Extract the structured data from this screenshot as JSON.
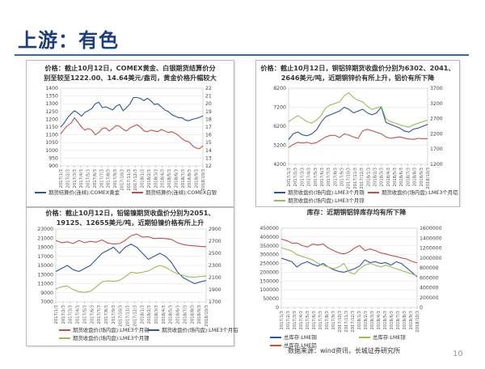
{
  "slide": {
    "title": "上游：有色",
    "source": "数据来源：wind资讯，长城证券研究所",
    "page_number": "10"
  },
  "chart_data": [
    {
      "id": "gold_silver",
      "type": "line",
      "caption_line1": "价格：截止10月12日，COMEX黄金、白银期货结算价分",
      "caption_line2": "别至较至1222.00、14.64美元/盎司，黄金价格升幅较大",
      "x_ticks": [
        "2017/1/3",
        "2017/2/3",
        "2017/3/3",
        "2017/4/3",
        "2017/5/3",
        "2017/6/3",
        "2017/7/3",
        "2017/8/3",
        "2017/9/3",
        "2017/10/3",
        "2017/11/3",
        "2017/12/3",
        "2018/1/3",
        "2018/2/3",
        "2018/3/3",
        "2018/4/3",
        "2018/5/3",
        "2018/6/3",
        "2018/7/3",
        "2018/8/3",
        "2018/9/3",
        "2018/10/3"
      ],
      "y_left": {
        "ticks": [
          "900",
          "950",
          "1000",
          "1050",
          "1100",
          "1150",
          "1200",
          "1250",
          "1300",
          "1350",
          "1400"
        ],
        "lim": [
          900,
          1400
        ]
      },
      "y_right": {
        "ticks": [
          "12",
          "13",
          "14",
          "15",
          "16",
          "17",
          "18",
          "19",
          "20",
          "21",
          "22"
        ],
        "lim": [
          12,
          22
        ]
      },
      "grid": true,
      "legend_position": "bottom",
      "series": [
        {
          "name": "期货结算价(连续):COMEX黄金",
          "axis": "left",
          "color": "#2f5597",
          "values": [
            1150,
            1175,
            1210,
            1235,
            1255,
            1240,
            1220,
            1245,
            1255,
            1270,
            1300,
            1310,
            1275,
            1280,
            1270,
            1260,
            1285,
            1295,
            1255,
            1275,
            1300,
            1340,
            1340,
            1335,
            1320,
            1335,
            1320,
            1295,
            1300,
            1280,
            1260,
            1250,
            1230,
            1220,
            1210,
            1210,
            1195,
            1190,
            1200,
            1205,
            1212,
            1222
          ]
        },
        {
          "name": "期货结算价(连续):COMEX白银",
          "axis": "right",
          "color": "#c0504d",
          "values": [
            16.1,
            16.7,
            17.2,
            17.5,
            18.2,
            17.6,
            17.0,
            16.6,
            16.8,
            16.6,
            16.0,
            16.3,
            16.8,
            16.9,
            16.5,
            16.8,
            17.2,
            17.1,
            16.7,
            16.5,
            16.9,
            17.1,
            17.3,
            17.0,
            16.5,
            16.4,
            16.6,
            16.5,
            16.4,
            16.7,
            16.5,
            16.3,
            16.4,
            16.2,
            15.9,
            15.5,
            15.2,
            15.1,
            14.6,
            14.3,
            14.2,
            14.6
          ]
        }
      ]
    },
    {
      "id": "copper_aluminum_zinc",
      "type": "line",
      "caption_line1": "价格：截止10月12日，铜铝锌期货收盘价分别为6302、2041、",
      "caption_line2": "2646美元/吨，近期铜锌价有所上升，铝价有所下降",
      "x_ticks": [
        "2017/1/3",
        "2017/2/3",
        "2017/3/3",
        "2017/4/3",
        "2017/5/3",
        "2017/6/3",
        "2017/7/3",
        "2017/8/3",
        "2017/9/3",
        "2017/10/3",
        "2017/11/3",
        "2017/12/3",
        "2018/1/3",
        "2018/2/3",
        "2018/3/3",
        "2018/4/3",
        "2018/5/3",
        "2018/6/3",
        "2018/7/3",
        "2018/8/3",
        "2018/9/3",
        "2018/10/3"
      ],
      "y_left": {
        "ticks": [
          "4200",
          "5200",
          "6200",
          "7200",
          "8200"
        ],
        "lim": [
          4200,
          8200
        ]
      },
      "y_right": {
        "ticks": [
          "1200",
          "1700",
          "2200",
          "2700",
          "3200",
          "3700"
        ],
        "lim": [
          1200,
          3700
        ]
      },
      "grid": true,
      "legend_position": "bottom",
      "series": [
        {
          "name": "期货收盘价(场内盘):LME3个月铜",
          "axis": "left",
          "color": "#2f5597",
          "values": [
            5500,
            5800,
            5900,
            5750,
            5700,
            5800,
            6000,
            6400,
            6700,
            6800,
            6900,
            7000,
            7200,
            7100,
            6900,
            7000,
            7100,
            6900,
            6800,
            6900,
            7200,
            6400,
            6300,
            6200,
            6100,
            5950,
            5900,
            6050,
            6100,
            6200,
            6302
          ]
        },
        {
          "name": "期货收盘价(场内盘):LME3个月铝",
          "axis": "right",
          "color": "#c0504d",
          "values": [
            1750,
            1850,
            1920,
            1900,
            1920,
            1880,
            1910,
            2000,
            2100,
            2150,
            2150,
            2080,
            2200,
            2160,
            2100,
            2050,
            2300,
            2350,
            2300,
            2250,
            2200,
            2100,
            2050,
            2080,
            2100,
            2060,
            2030,
            2020,
            2050,
            2040,
            2041
          ]
        },
        {
          "name": "期货收盘价(场内盘):LME3个月锌",
          "axis": "right",
          "color": "#9bbb59",
          "values": [
            2600,
            2700,
            2800,
            2700,
            2600,
            2550,
            2650,
            2800,
            3050,
            3150,
            3200,
            3250,
            3450,
            3550,
            3400,
            3300,
            3250,
            3100,
            3000,
            3050,
            3100,
            2700,
            2600,
            2550,
            2500,
            2450,
            2420,
            2500,
            2550,
            2600,
            2646
          ]
        }
      ]
    },
    {
      "id": "lead_tin_nickel",
      "type": "line",
      "caption_line1": "价格：截止10月12日，铅锡镍期货收盘价分别为2051、",
      "caption_line2": "19125、12655美元/吨，近期铅镍价格有所上升",
      "x_ticks": [
        "2017/1/3",
        "2017/2/3",
        "2017/3/3",
        "2017/4/3",
        "2017/5/3",
        "2017/6/3",
        "2017/7/3",
        "2017/8/3",
        "2017/9/3",
        "2017/10/3",
        "2017/11/3",
        "2017/12/3",
        "2018/1/3",
        "2018/2/3",
        "2018/3/3",
        "2018/4/3",
        "2018/5/3",
        "2018/6/3",
        "2018/7/3",
        "2018/8/3",
        "2018/9/3",
        "2018/10/3"
      ],
      "y_left": {
        "ticks": [
          "7000",
          "9000",
          "11000",
          "13000",
          "15000",
          "17000",
          "19000",
          "21000",
          "23000"
        ],
        "lim": [
          7000,
          23000
        ]
      },
      "y_right": {
        "ticks": [
          "1700",
          "1900",
          "2100",
          "2300",
          "2500",
          "2700",
          "2900"
        ],
        "lim": [
          1700,
          2900
        ]
      },
      "grid": true,
      "legend_position": "bottom",
      "series": [
        {
          "name": "期货收盘价(场内盘):LME3个月锡",
          "axis": "left",
          "color": "#c0504d",
          "values": [
            20500,
            20000,
            20200,
            19800,
            20500,
            20000,
            20300,
            20100,
            20600,
            19900,
            19700,
            19800,
            20500,
            21500,
            21900,
            21200,
            21300,
            20900,
            21000,
            20900,
            20700,
            20000,
            19600,
            19400,
            19300,
            19200,
            19125
          ]
        },
        {
          "name": "期货收盘价(场内盘):LME3个月铅",
          "axis": "right",
          "color": "#2f5597",
          "values": [
            2200,
            2250,
            2300,
            2230,
            2200,
            2250,
            2300,
            2400,
            2500,
            2550,
            2600,
            2500,
            2600,
            2650,
            2600,
            2500,
            2400,
            2450,
            2500,
            2450,
            2350,
            2200,
            2100,
            2050,
            2000,
            2030,
            2051
          ]
        },
        {
          "name": "期货收盘价(场内盘):LME3个月镍",
          "axis": "left",
          "color": "#9bbb59",
          "values": [
            9800,
            10300,
            10500,
            9700,
            9200,
            9100,
            9300,
            10300,
            11400,
            11600,
            11500,
            11700,
            12500,
            13500,
            13300,
            13500,
            13800,
            14500,
            15000,
            14600,
            13800,
            13200,
            12800,
            12500,
            12400,
            12550,
            12655
          ]
        }
      ]
    },
    {
      "id": "lme_inventory",
      "type": "line",
      "caption_line1": "库存：近期铜铝锌库存均有所下降",
      "caption_line2": "",
      "x_ticks": [
        "2017/1/3",
        "2017/2/3",
        "2017/3/3",
        "2017/4/3",
        "2017/5/3",
        "2017/6/3",
        "2017/7/3",
        "2017/8/3",
        "2017/9/3",
        "2017/10/3",
        "2017/11/3",
        "2017/12/3",
        "2018/1/3",
        "2018/2/3",
        "2018/3/3",
        "2018/4/3",
        "2018/5/3",
        "2018/6/3",
        "2018/7/3",
        "2018/8/3",
        "2018/9/3",
        "2018/10/3"
      ],
      "y_left": {
        "ticks": [
          "0",
          "50000",
          "100000",
          "150000",
          "200000",
          "250000",
          "300000",
          "350000",
          "400000",
          "450000"
        ],
        "lim": [
          0,
          450000
        ]
      },
      "y_right": {
        "ticks": [
          "0",
          "200000",
          "400000",
          "600000",
          "800000",
          "1000000",
          "1200000",
          "1400000",
          "1600000"
        ],
        "lim": [
          0,
          1600000
        ]
      },
      "grid": true,
      "legend_position": "bottom",
      "series": [
        {
          "name": "总库存:LME铜",
          "axis": "left",
          "color": "#2f5597",
          "values": [
            280000,
            270000,
            260000,
            230000,
            250000,
            260000,
            245000,
            235000,
            250000,
            230000,
            215000,
            205000,
            200000,
            210000,
            220000,
            235000,
            270000,
            255000,
            260000,
            250000,
            255000,
            240000,
            260000,
            250000,
            225000,
            200000,
            175000
          ]
        },
        {
          "name": "总库存:LME锌",
          "axis": "left",
          "color": "#9bbb59",
          "values": [
            340000,
            330000,
            320000,
            300000,
            290000,
            280000,
            270000,
            250000,
            240000,
            230000,
            220000,
            230000,
            250000,
            200000,
            190000,
            220000,
            240000,
            250000,
            240000,
            230000,
            240000,
            230000,
            220000,
            210000,
            200000,
            190000,
            180000
          ]
        },
        {
          "name": "总库存:LME铝",
          "axis": "right",
          "color": "#c0504d",
          "values": [
            1380000,
            1350000,
            1300000,
            1300000,
            1250000,
            1220000,
            1280000,
            1260000,
            1280000,
            1200000,
            1150000,
            1100000,
            1080000,
            1120000,
            1200000,
            1250000,
            1150000,
            1180000,
            1150000,
            1100000,
            1080000,
            1050000,
            1030000,
            1000000,
            980000,
            930000,
            900000
          ]
        }
      ]
    }
  ]
}
